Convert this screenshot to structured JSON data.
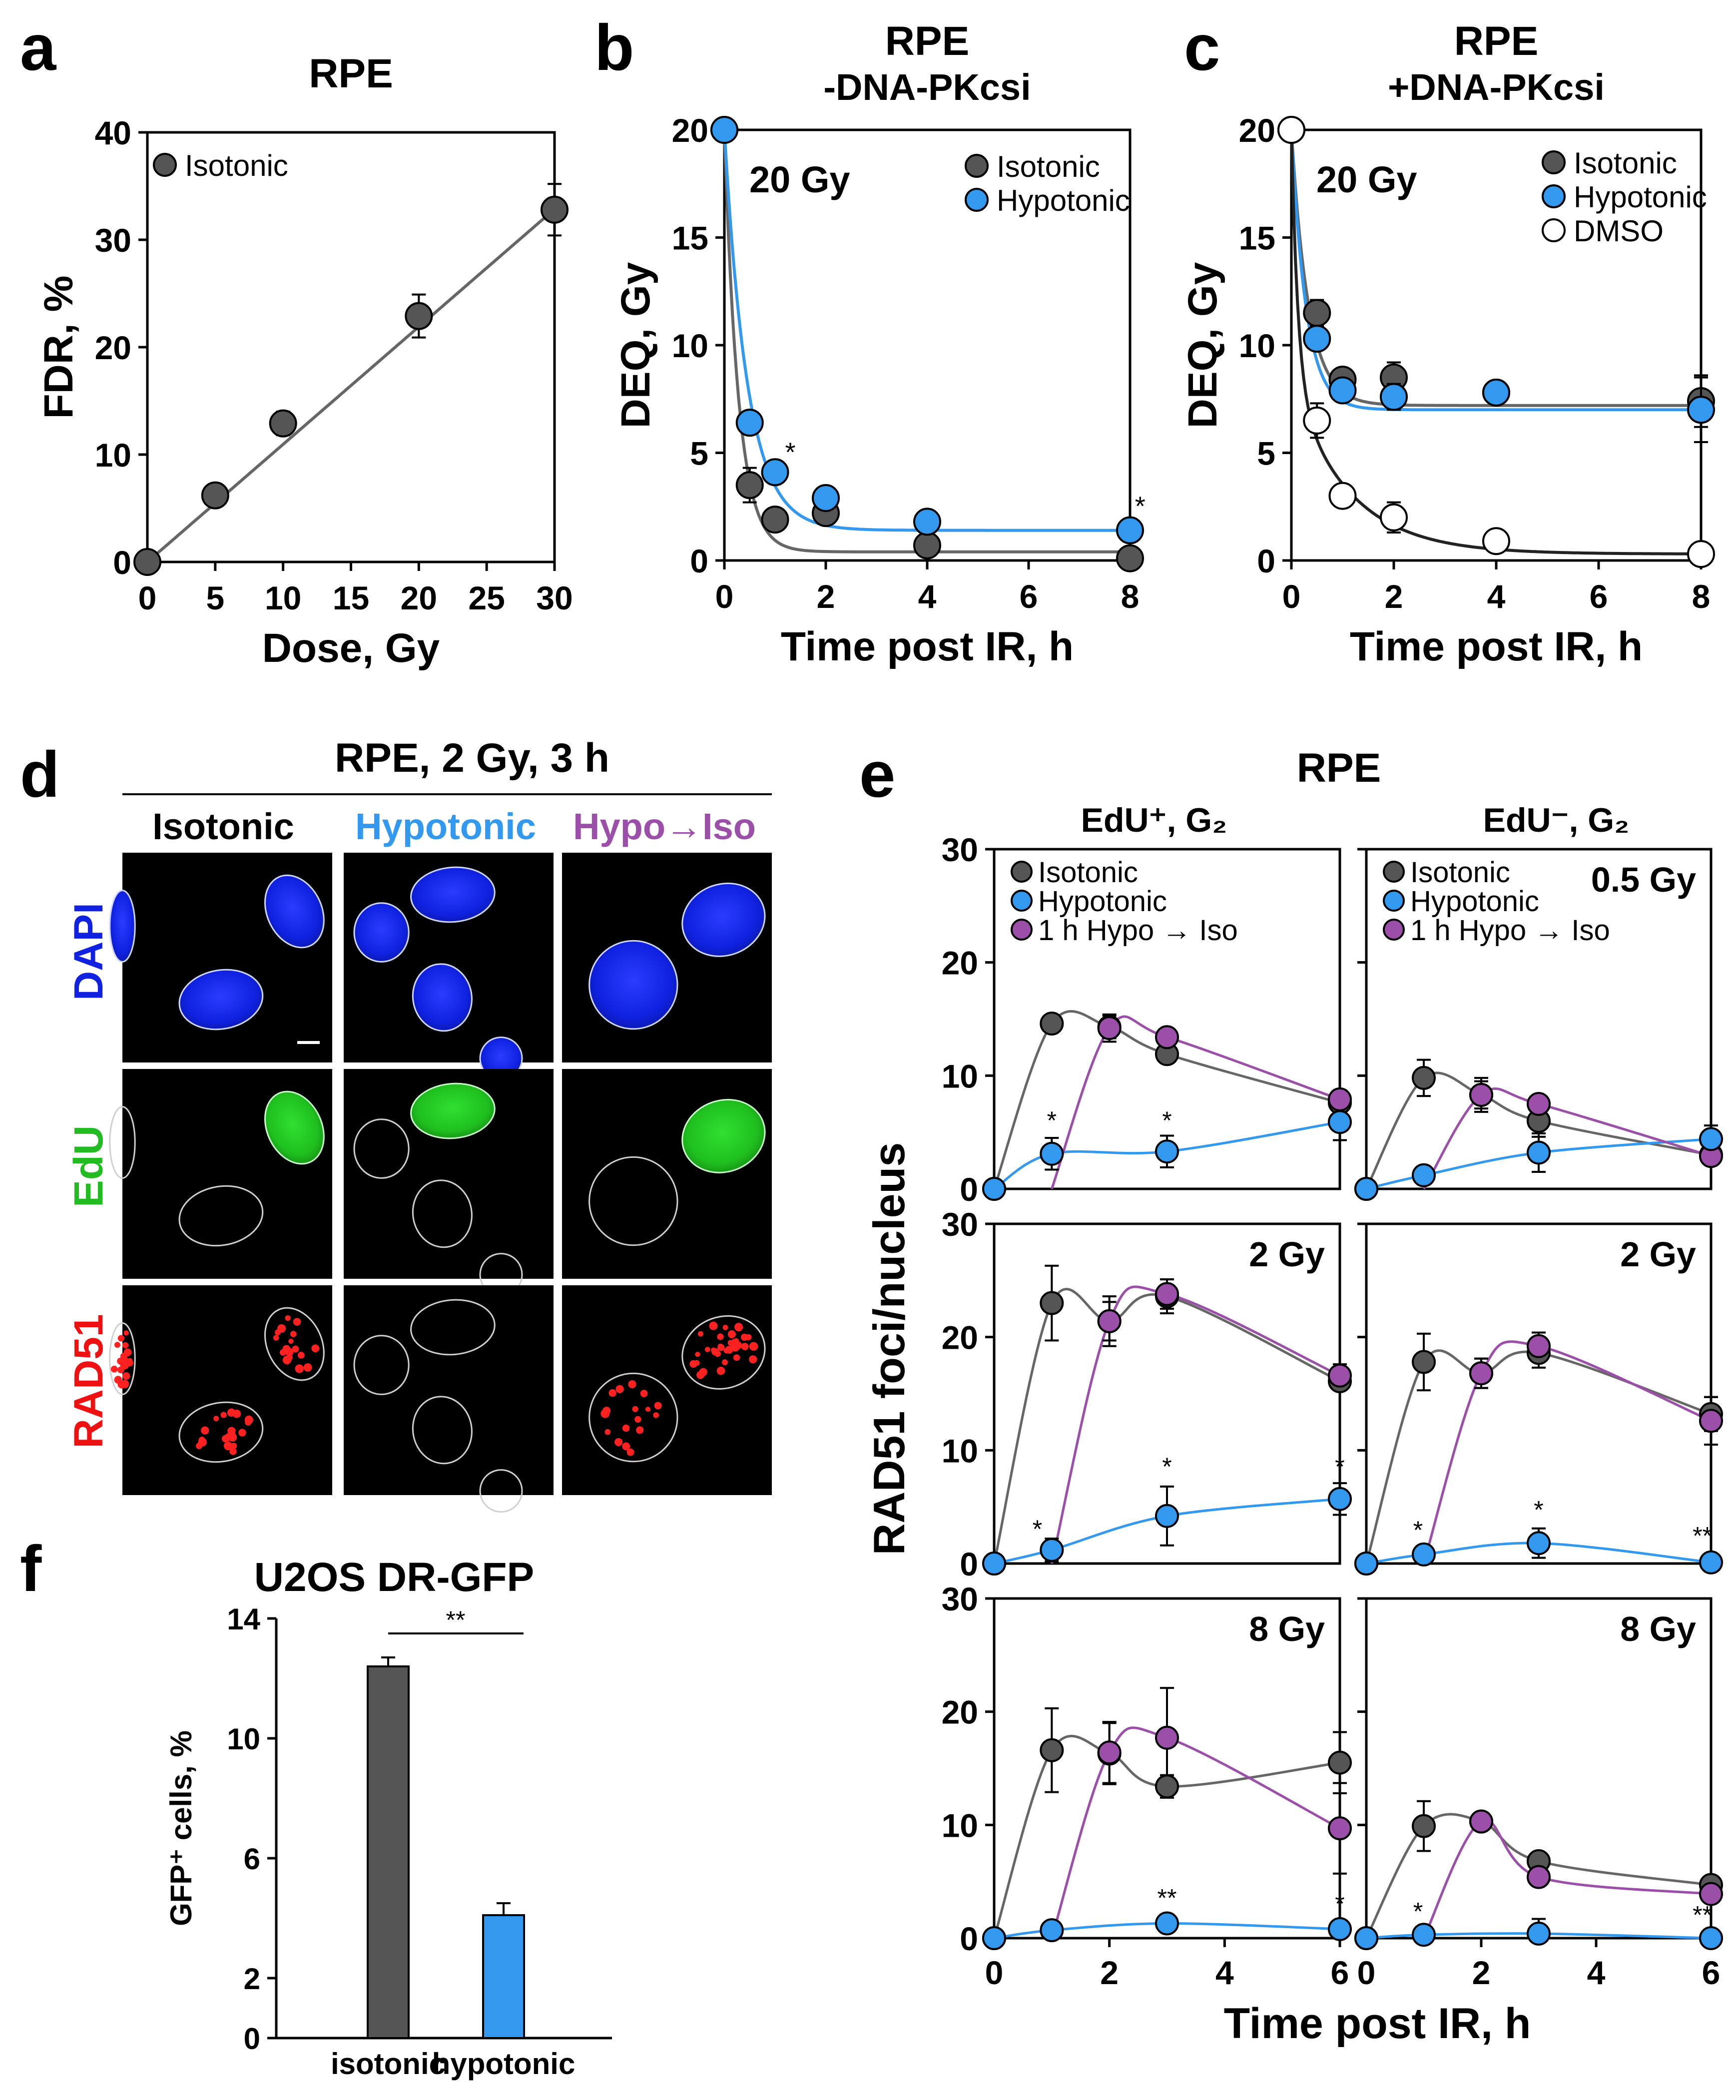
{
  "colors": {
    "isotonic": "#555555",
    "hypotonic": "#3399ee",
    "hypoiso": "#9b4fa8",
    "dmso": "#ffffff",
    "axis": "#000000",
    "iso_line": "#666666"
  },
  "panel_letters": {
    "a": "a",
    "b": "b",
    "c": "c",
    "d": "d",
    "e": "e",
    "f": "f"
  },
  "chart_data": [
    {
      "id": "a",
      "type": "scatter",
      "title": "RPE",
      "xlabel": "Dose, Gy",
      "ylabel": "FDR, %",
      "xlim": [
        0,
        30
      ],
      "ylim": [
        0,
        40
      ],
      "xticks": [
        "0",
        "5",
        "10",
        "15",
        "20",
        "25",
        "30"
      ],
      "yticks": [
        "0",
        "10",
        "20",
        "30",
        "40"
      ],
      "series": [
        {
          "name": "Isotonic",
          "x": [
            0,
            5,
            10,
            20,
            30
          ],
          "y": [
            0,
            6.2,
            12.9,
            22.9,
            32.8
          ],
          "err": [
            0,
            0.3,
            1.1,
            2.0,
            2.4
          ],
          "fit": "linear"
        }
      ]
    },
    {
      "id": "b",
      "type": "scatter",
      "title": "RPE",
      "subtitle": "-DNA-PKcsi",
      "xlabel": "Time post IR, h",
      "ylabel": "DEQ, Gy",
      "xlim": [
        0,
        8
      ],
      "ylim": [
        0,
        20
      ],
      "annotation": "20 Gy",
      "xticks": [
        "0",
        "2",
        "4",
        "6",
        "8"
      ],
      "yticks": [
        "0",
        "5",
        "10",
        "15",
        "20"
      ],
      "series": [
        {
          "name": "Isotonic",
          "x": [
            0,
            0.5,
            1,
            2,
            4,
            8
          ],
          "y": [
            20,
            3.5,
            1.9,
            2.2,
            0.7,
            0.1
          ],
          "err": [
            0,
            0.8,
            0.4,
            0.5,
            0.2,
            0.1
          ]
        },
        {
          "name": "Hypotonic",
          "x": [
            0,
            0.5,
            1,
            2,
            4,
            8
          ],
          "y": [
            20,
            6.4,
            4.1,
            2.9,
            1.8,
            1.4
          ],
          "err": [
            0,
            0.3,
            0.3,
            0.3,
            0.2,
            0.2
          ]
        }
      ],
      "stars": [
        {
          "x": 1.3,
          "y": 4.6,
          "label": "*"
        },
        {
          "x": 8.2,
          "y": 2.1,
          "label": "*"
        }
      ]
    },
    {
      "id": "c",
      "type": "scatter",
      "title": "RPE",
      "subtitle": "+DNA-PKcsi",
      "xlabel": "Time post IR, h",
      "ylabel": "DEQ, Gy",
      "xlim": [
        0,
        8
      ],
      "ylim": [
        0,
        20
      ],
      "annotation": "20 Gy",
      "xticks": [
        "0",
        "2",
        "4",
        "6",
        "8"
      ],
      "yticks": [
        "0",
        "5",
        "10",
        "15",
        "20"
      ],
      "series": [
        {
          "name": "Isotonic",
          "x": [
            0,
            0.5,
            1,
            2,
            4,
            8
          ],
          "y": [
            20,
            11.5,
            8.4,
            8.5,
            7.8,
            7.4
          ],
          "err": [
            0,
            0.6,
            0.5,
            0.7,
            0.4,
            1.2
          ]
        },
        {
          "name": "Hypotonic",
          "x": [
            0,
            0.5,
            1,
            2,
            4,
            8
          ],
          "y": [
            20,
            10.3,
            7.9,
            7.6,
            7.8,
            7.0
          ],
          "err": [
            0,
            0.5,
            0.5,
            0.6,
            0.4,
            1.5
          ]
        },
        {
          "name": "DMSO",
          "x": [
            0,
            0.5,
            1,
            2,
            4,
            8
          ],
          "y": [
            20,
            6.5,
            3.0,
            2.0,
            0.9,
            0.3
          ],
          "err": [
            0,
            0.8,
            0.4,
            0.7,
            0.2,
            0.2
          ]
        }
      ]
    },
    {
      "id": "f",
      "type": "bar",
      "title": "U2OS DR-GFP",
      "ylabel": "GFP⁺ cells, %",
      "categories": [
        "isotonic",
        "hypotonic"
      ],
      "values": [
        12.4,
        4.1
      ],
      "err": [
        0.3,
        0.4
      ],
      "ylim": [
        0,
        14
      ],
      "yticks": [
        "0",
        "2",
        "6",
        "10",
        "14"
      ],
      "significance": "**"
    },
    {
      "id": "e",
      "type": "scatter",
      "title": "RPE",
      "xlabel": "Time post IR, h",
      "ylabel": "RAD51 foci/nucleus",
      "column_titles": [
        "EdU⁺, G₂",
        "EdU⁻, G₂"
      ],
      "legend": [
        "Isotonic",
        "Hypotonic",
        "1 h Hypo → Iso"
      ],
      "xticks": [
        "0",
        "2",
        "4",
        "6"
      ],
      "yticks": [
        "0",
        "10",
        "20",
        "30"
      ],
      "xlim": [
        0,
        6
      ],
      "ylim": [
        0,
        30
      ],
      "subpanels": [
        {
          "col": 0,
          "row": 0,
          "dose": "",
          "iso": {
            "x": [
              0,
              1,
              2,
              3,
              6
            ],
            "y": [
              0,
              14.6,
              14.3,
              11.9,
              7.6
            ],
            "err": [
              0,
              0.3,
              1.0,
              0.6,
              1.1
            ]
          },
          "hypo": {
            "x": [
              0,
              1,
              3,
              6
            ],
            "y": [
              0,
              3.1,
              3.3,
              5.9
            ],
            "err": [
              0,
              1.4,
              1.4,
              1.6
            ]
          },
          "hi": {
            "x": [
              1,
              2,
              3,
              6
            ],
            "y": [
              0,
              14.2,
              13.4,
              7.9
            ],
            "err": [
              0,
              1.2,
              0.5,
              0.8
            ]
          },
          "stars": [
            {
              "x": 1,
              "y": 5.3,
              "label": "*"
            },
            {
              "x": 3,
              "y": 5.3,
              "label": "*"
            }
          ]
        },
        {
          "col": 1,
          "row": 0,
          "dose": "0.5 Gy",
          "iso": {
            "x": [
              0,
              1,
              2,
              3,
              6
            ],
            "y": [
              0,
              9.8,
              8.3,
              6.0,
              3.0
            ],
            "err": [
              0,
              1.6,
              1.5,
              1.4,
              0.4
            ]
          },
          "hypo": {
            "x": [
              0,
              1,
              3,
              6
            ],
            "y": [
              0,
              1.2,
              3.2,
              4.4
            ],
            "err": [
              0,
              0.4,
              1.7,
              1.2
            ]
          },
          "hi": {
            "x": [
              1,
              2,
              3,
              6
            ],
            "y": [
              0,
              8.3,
              7.5,
              2.9
            ],
            "err": [
              0,
              1.2,
              0.5,
              0.4
            ]
          },
          "stars": []
        },
        {
          "col": 0,
          "row": 1,
          "dose": "2 Gy",
          "iso": {
            "x": [
              0,
              1,
              2,
              3,
              6
            ],
            "y": [
              0,
              23.0,
              21.4,
              23.6,
              16.1
            ],
            "err": [
              0,
              3.3,
              1.7,
              1.5,
              0.6
            ]
          },
          "hypo": {
            "x": [
              0,
              1,
              3,
              6
            ],
            "y": [
              0,
              1.2,
              4.2,
              5.7
            ],
            "err": [
              0,
              1.0,
              2.6,
              1.4
            ]
          },
          "hi": {
            "x": [
              1,
              2,
              3,
              6
            ],
            "y": [
              0,
              21.4,
              23.8,
              16.6
            ],
            "err": [
              0,
              2.2,
              1.3,
              1.0
            ]
          },
          "stars": [
            {
              "x": 0.75,
              "y": 2.3,
              "label": "*"
            },
            {
              "x": 3,
              "y": 7.8,
              "label": "*"
            },
            {
              "x": 6,
              "y": 7.8,
              "label": "*"
            }
          ]
        },
        {
          "col": 1,
          "row": 1,
          "dose": "2 Gy",
          "iso": {
            "x": [
              0,
              1,
              2,
              3,
              6
            ],
            "y": [
              0,
              17.8,
              16.8,
              18.6,
              13.2
            ],
            "err": [
              0,
              2.5,
              1.3,
              1.3,
              1.5
            ]
          },
          "hypo": {
            "x": [
              0,
              1,
              3,
              6
            ],
            "y": [
              0,
              0.8,
              1.8,
              0.1
            ],
            "err": [
              0,
              0.6,
              1.3,
              0.1
            ]
          },
          "hi": {
            "x": [
              1,
              2,
              3,
              6
            ],
            "y": [
              0,
              16.8,
              19.2,
              12.6
            ],
            "err": [
              0,
              1.3,
              1.2,
              2.1
            ]
          },
          "stars": [
            {
              "x": 0.9,
              "y": 2.2,
              "label": "*"
            },
            {
              "x": 3,
              "y": 4.0,
              "label": "*"
            },
            {
              "x": 5.85,
              "y": 1.7,
              "label": "**"
            }
          ]
        },
        {
          "col": 0,
          "row": 2,
          "dose": "8 Gy",
          "iso": {
            "x": [
              0,
              1,
              2,
              3,
              6
            ],
            "y": [
              0,
              16.6,
              16.3,
              13.4,
              15.5
            ],
            "err": [
              0,
              3.7,
              2.7,
              1.0,
              2.7
            ]
          },
          "hypo": {
            "x": [
              0,
              1,
              3,
              6
            ],
            "y": [
              0,
              0.7,
              1.3,
              0.8
            ],
            "err": [
              0,
              0.3,
              0.7,
              0.3
            ]
          },
          "hi": {
            "x": [
              1,
              2,
              3,
              6
            ],
            "y": [
              0,
              16.4,
              17.7,
              9.7
            ],
            "err": [
              0,
              2.7,
              4.4,
              4.0
            ]
          },
          "stars": [
            {
              "x": 3,
              "y": 2.8,
              "label": "**"
            },
            {
              "x": 6,
              "y": 2.3,
              "label": "*"
            }
          ]
        },
        {
          "col": 1,
          "row": 2,
          "dose": "8 Gy",
          "iso": {
            "x": [
              0,
              1,
              2,
              3,
              6
            ],
            "y": [
              0,
              9.9,
              10.3,
              6.8,
              4.7
            ],
            "err": [
              0,
              2.2,
              0.3,
              0.6,
              0.3
            ]
          },
          "hypo": {
            "x": [
              0,
              1,
              3,
              6
            ],
            "y": [
              0,
              0.3,
              0.4,
              0.0
            ],
            "err": [
              0,
              0.4,
              1.3,
              0.1
            ]
          },
          "hi": {
            "x": [
              1,
              2,
              3,
              6
            ],
            "y": [
              0,
              10.3,
              5.4,
              3.9
            ],
            "err": [
              0,
              0.4,
              0.5,
              0.5
            ]
          },
          "stars": [
            {
              "x": 0.9,
              "y": 1.6,
              "label": "*"
            },
            {
              "x": 5.85,
              "y": 1.3,
              "label": "**"
            }
          ]
        }
      ]
    }
  ],
  "panel_d": {
    "title": "RPE, 2 Gy, 3 h",
    "columns": [
      "Isotonic",
      "Hypotonic",
      "Hypo→Iso"
    ],
    "rows": [
      "DAPI",
      "EdU",
      "RAD51"
    ]
  }
}
